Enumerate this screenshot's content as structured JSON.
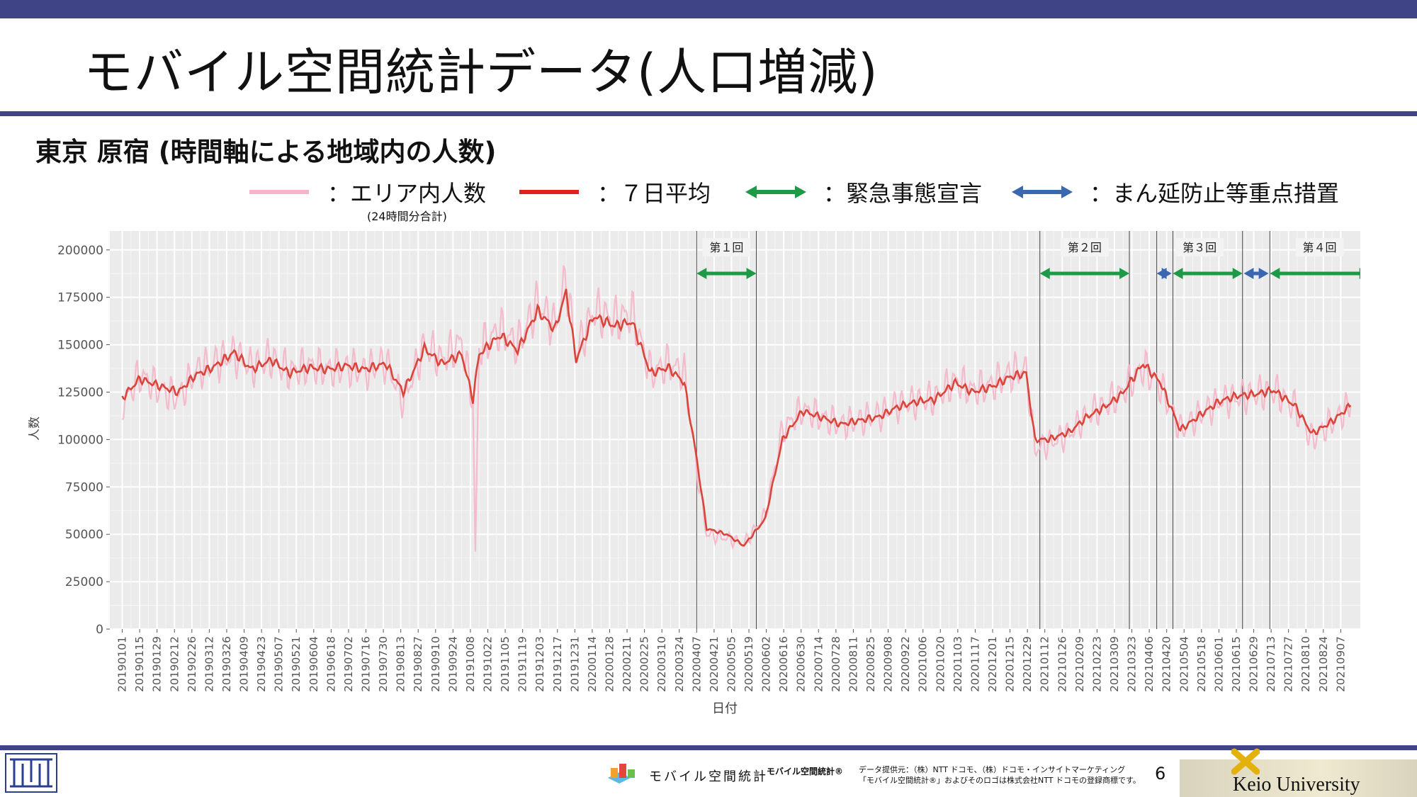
{
  "slide": {
    "title": "モバイル空間統計データ(人口増減)",
    "subtitle": "東京 原宿 (時間軸による地域内の人数)",
    "page_number": "6"
  },
  "legend": {
    "area": "：エリア内人数",
    "area_note": "(24時間分合計)",
    "avg": "：７日平均",
    "emergency": "：緊急事態宣言",
    "manen": "：まん延防止等重点措置",
    "colors": {
      "area": "#f4b6c8",
      "avg": "#e02020",
      "emergency": "#1e9a46",
      "manen": "#3b67b0"
    }
  },
  "footer": {
    "logo_text": "モバイル空間統計",
    "logo_text_reg": "モバイル空間統計®",
    "credit_line1": "データ提供元：（株）NTT ドコモ、（株）ドコモ・インサイトマーケティング",
    "credit_line2": "「モバイル空間統計®」およびそのロゴは株式会社NTT ドコモの登録商標です。",
    "university": "Keio University"
  },
  "chart_data": {
    "type": "line",
    "xlabel": "日付",
    "ylabel": "人数",
    "ylim": [
      0,
      210000
    ],
    "yticks": [
      0,
      25000,
      50000,
      75000,
      100000,
      125000,
      150000,
      175000,
      200000
    ],
    "ytick_labels": [
      "0",
      "25000",
      "50000",
      "75000",
      "100000",
      "125000",
      "150000",
      "175000",
      "200000"
    ],
    "xlim": [
      "2018-12-22",
      "2021-10-03"
    ],
    "xticks": [
      "20190101",
      "20190115",
      "20190129",
      "20190212",
      "20190226",
      "20190312",
      "20190326",
      "20190409",
      "20190423",
      "20190507",
      "20190521",
      "20190604",
      "20190618",
      "20190702",
      "20190716",
      "20190730",
      "20190813",
      "20190827",
      "20190910",
      "20190924",
      "20191008",
      "20191022",
      "20191105",
      "20191119",
      "20191203",
      "20191217",
      "20191231",
      "20200114",
      "20200128",
      "20200211",
      "20200225",
      "20200310",
      "20200324",
      "20200407",
      "20200421",
      "20200505",
      "20200519",
      "20200602",
      "20200616",
      "20200630",
      "20200714",
      "20200728",
      "20200811",
      "20200825",
      "20200908",
      "20200922",
      "20201006",
      "20201020",
      "20201103",
      "20201117",
      "20201201",
      "20201215",
      "20201229",
      "20210112",
      "20210126",
      "20210209",
      "20210223",
      "20210309",
      "20210323",
      "20210406",
      "20210420",
      "20210504",
      "20210518",
      "20210601",
      "20210615",
      "20210629",
      "20210713",
      "20210727",
      "20210810",
      "20210824",
      "20210907"
    ],
    "grid": true,
    "series": [
      {
        "name": "エリア内人数",
        "x": [
          "2019-01-01",
          "2019-01-15",
          "2019-02-01",
          "2019-02-15",
          "2019-03-01",
          "2019-03-15",
          "2019-04-01",
          "2019-04-15",
          "2019-05-01",
          "2019-05-15",
          "2019-06-01",
          "2019-06-15",
          "2019-07-01",
          "2019-07-15",
          "2019-08-01",
          "2019-08-15",
          "2019-09-01",
          "2019-09-15",
          "2019-10-01",
          "2019-10-10",
          "2019-10-12",
          "2019-10-15",
          "2019-11-01",
          "2019-11-15",
          "2019-12-01",
          "2019-12-15",
          "2019-12-24",
          "2020-01-01",
          "2020-01-15",
          "2020-02-01",
          "2020-02-15",
          "2020-03-01",
          "2020-03-15",
          "2020-03-28",
          "2020-04-07",
          "2020-04-15",
          "2020-05-01",
          "2020-05-15",
          "2020-06-01",
          "2020-06-15",
          "2020-07-01",
          "2020-07-15",
          "2020-08-01",
          "2020-08-15",
          "2020-09-01",
          "2020-09-15",
          "2020-10-01",
          "2020-10-15",
          "2020-11-01",
          "2020-11-15",
          "2020-12-01",
          "2020-12-15",
          "2020-12-28",
          "2021-01-04",
          "2021-01-15",
          "2021-02-01",
          "2021-02-15",
          "2021-03-01",
          "2021-03-15",
          "2021-04-01",
          "2021-04-15",
          "2021-05-01",
          "2021-05-15",
          "2021-06-01",
          "2021-06-15",
          "2021-07-01",
          "2021-07-15",
          "2021-08-01",
          "2021-08-15",
          "2021-09-01",
          "2021-09-15"
        ],
        "values": [
          118000,
          134000,
          126000,
          122000,
          136000,
          140000,
          145000,
          138000,
          143000,
          136000,
          139000,
          137000,
          138000,
          136000,
          141000,
          120000,
          150000,
          142000,
          152000,
          120000,
          40000,
          148000,
          158000,
          150000,
          172000,
          160000,
          185000,
          145000,
          168000,
          163000,
          167000,
          135000,
          140000,
          135000,
          85000,
          50000,
          48000,
          45000,
          60000,
          105000,
          116000,
          112000,
          108000,
          110000,
          113000,
          118000,
          120000,
          122000,
          131000,
          126000,
          129000,
          135000,
          137000,
          95000,
          98000,
          103000,
          113000,
          118000,
          125000,
          138000,
          128000,
          105000,
          112000,
          120000,
          122000,
          124000,
          126000,
          117000,
          100000,
          110000,
          118000
        ]
      },
      {
        "name": "７日平均",
        "x": [
          "2019-01-01",
          "2019-01-15",
          "2019-02-01",
          "2019-02-15",
          "2019-03-01",
          "2019-03-15",
          "2019-04-01",
          "2019-04-15",
          "2019-05-01",
          "2019-05-15",
          "2019-06-01",
          "2019-06-15",
          "2019-07-01",
          "2019-07-15",
          "2019-08-01",
          "2019-08-15",
          "2019-09-01",
          "2019-09-15",
          "2019-10-01",
          "2019-10-10",
          "2019-10-15",
          "2019-11-01",
          "2019-11-15",
          "2019-12-01",
          "2019-12-15",
          "2019-12-24",
          "2020-01-01",
          "2020-01-15",
          "2020-02-01",
          "2020-02-15",
          "2020-03-01",
          "2020-03-15",
          "2020-03-28",
          "2020-04-07",
          "2020-04-15",
          "2020-05-01",
          "2020-05-15",
          "2020-06-01",
          "2020-06-15",
          "2020-07-01",
          "2020-07-15",
          "2020-08-01",
          "2020-08-15",
          "2020-09-01",
          "2020-09-15",
          "2020-10-01",
          "2020-10-15",
          "2020-11-01",
          "2020-11-15",
          "2020-12-01",
          "2020-12-15",
          "2020-12-28",
          "2021-01-04",
          "2021-01-15",
          "2021-02-01",
          "2021-02-15",
          "2021-03-01",
          "2021-03-15",
          "2021-04-01",
          "2021-04-15",
          "2021-05-01",
          "2021-05-15",
          "2021-06-01",
          "2021-06-15",
          "2021-07-01",
          "2021-07-15",
          "2021-08-01",
          "2021-08-15",
          "2021-09-01",
          "2021-09-15"
        ],
        "values": [
          122000,
          132000,
          128000,
          125000,
          134000,
          138000,
          146000,
          137000,
          142000,
          135000,
          138000,
          137000,
          139000,
          137000,
          140000,
          125000,
          148000,
          140000,
          145000,
          121000,
          145000,
          155000,
          147000,
          168000,
          158000,
          178000,
          142000,
          165000,
          160000,
          162000,
          135000,
          138000,
          130000,
          90000,
          53000,
          50000,
          44000,
          58000,
          100000,
          115000,
          112000,
          108000,
          110000,
          112000,
          117000,
          120000,
          121000,
          130000,
          125000,
          128000,
          133000,
          135000,
          100000,
          100000,
          104000,
          112000,
          117000,
          124000,
          140000,
          130000,
          105000,
          112000,
          120000,
          123000,
          124000,
          126000,
          118000,
          103000,
          110000,
          118000
        ]
      }
    ],
    "phases": [
      {
        "label": "第１回",
        "start": "2020-04-07",
        "end": "2020-05-25",
        "measures": [
          {
            "type": "emergency",
            "start": "2020-04-07",
            "end": "2020-05-25"
          }
        ]
      },
      {
        "label": "第２回",
        "start": "2021-01-08",
        "end": "2021-03-21",
        "measures": [
          {
            "type": "emergency",
            "start": "2021-01-08",
            "end": "2021-03-21"
          }
        ]
      },
      {
        "label": "第３回",
        "start": "2021-04-12",
        "end": "2021-06-20",
        "measures": [
          {
            "type": "manen",
            "start": "2021-04-12",
            "end": "2021-04-24"
          },
          {
            "type": "emergency",
            "start": "2021-04-25",
            "end": "2021-06-20"
          },
          {
            "type": "manen",
            "start": "2021-06-21",
            "end": "2021-07-11"
          }
        ]
      },
      {
        "label": "第４回",
        "start": "2021-07-12",
        "end": "2021-09-30",
        "measures": [
          {
            "type": "emergency",
            "start": "2021-07-12",
            "end": "2021-09-30"
          }
        ]
      }
    ],
    "vlines": [
      "2020-04-07",
      "2020-05-25",
      "2021-01-08",
      "2021-03-21",
      "2021-04-12",
      "2021-04-25",
      "2021-06-20",
      "2021-07-12"
    ]
  }
}
